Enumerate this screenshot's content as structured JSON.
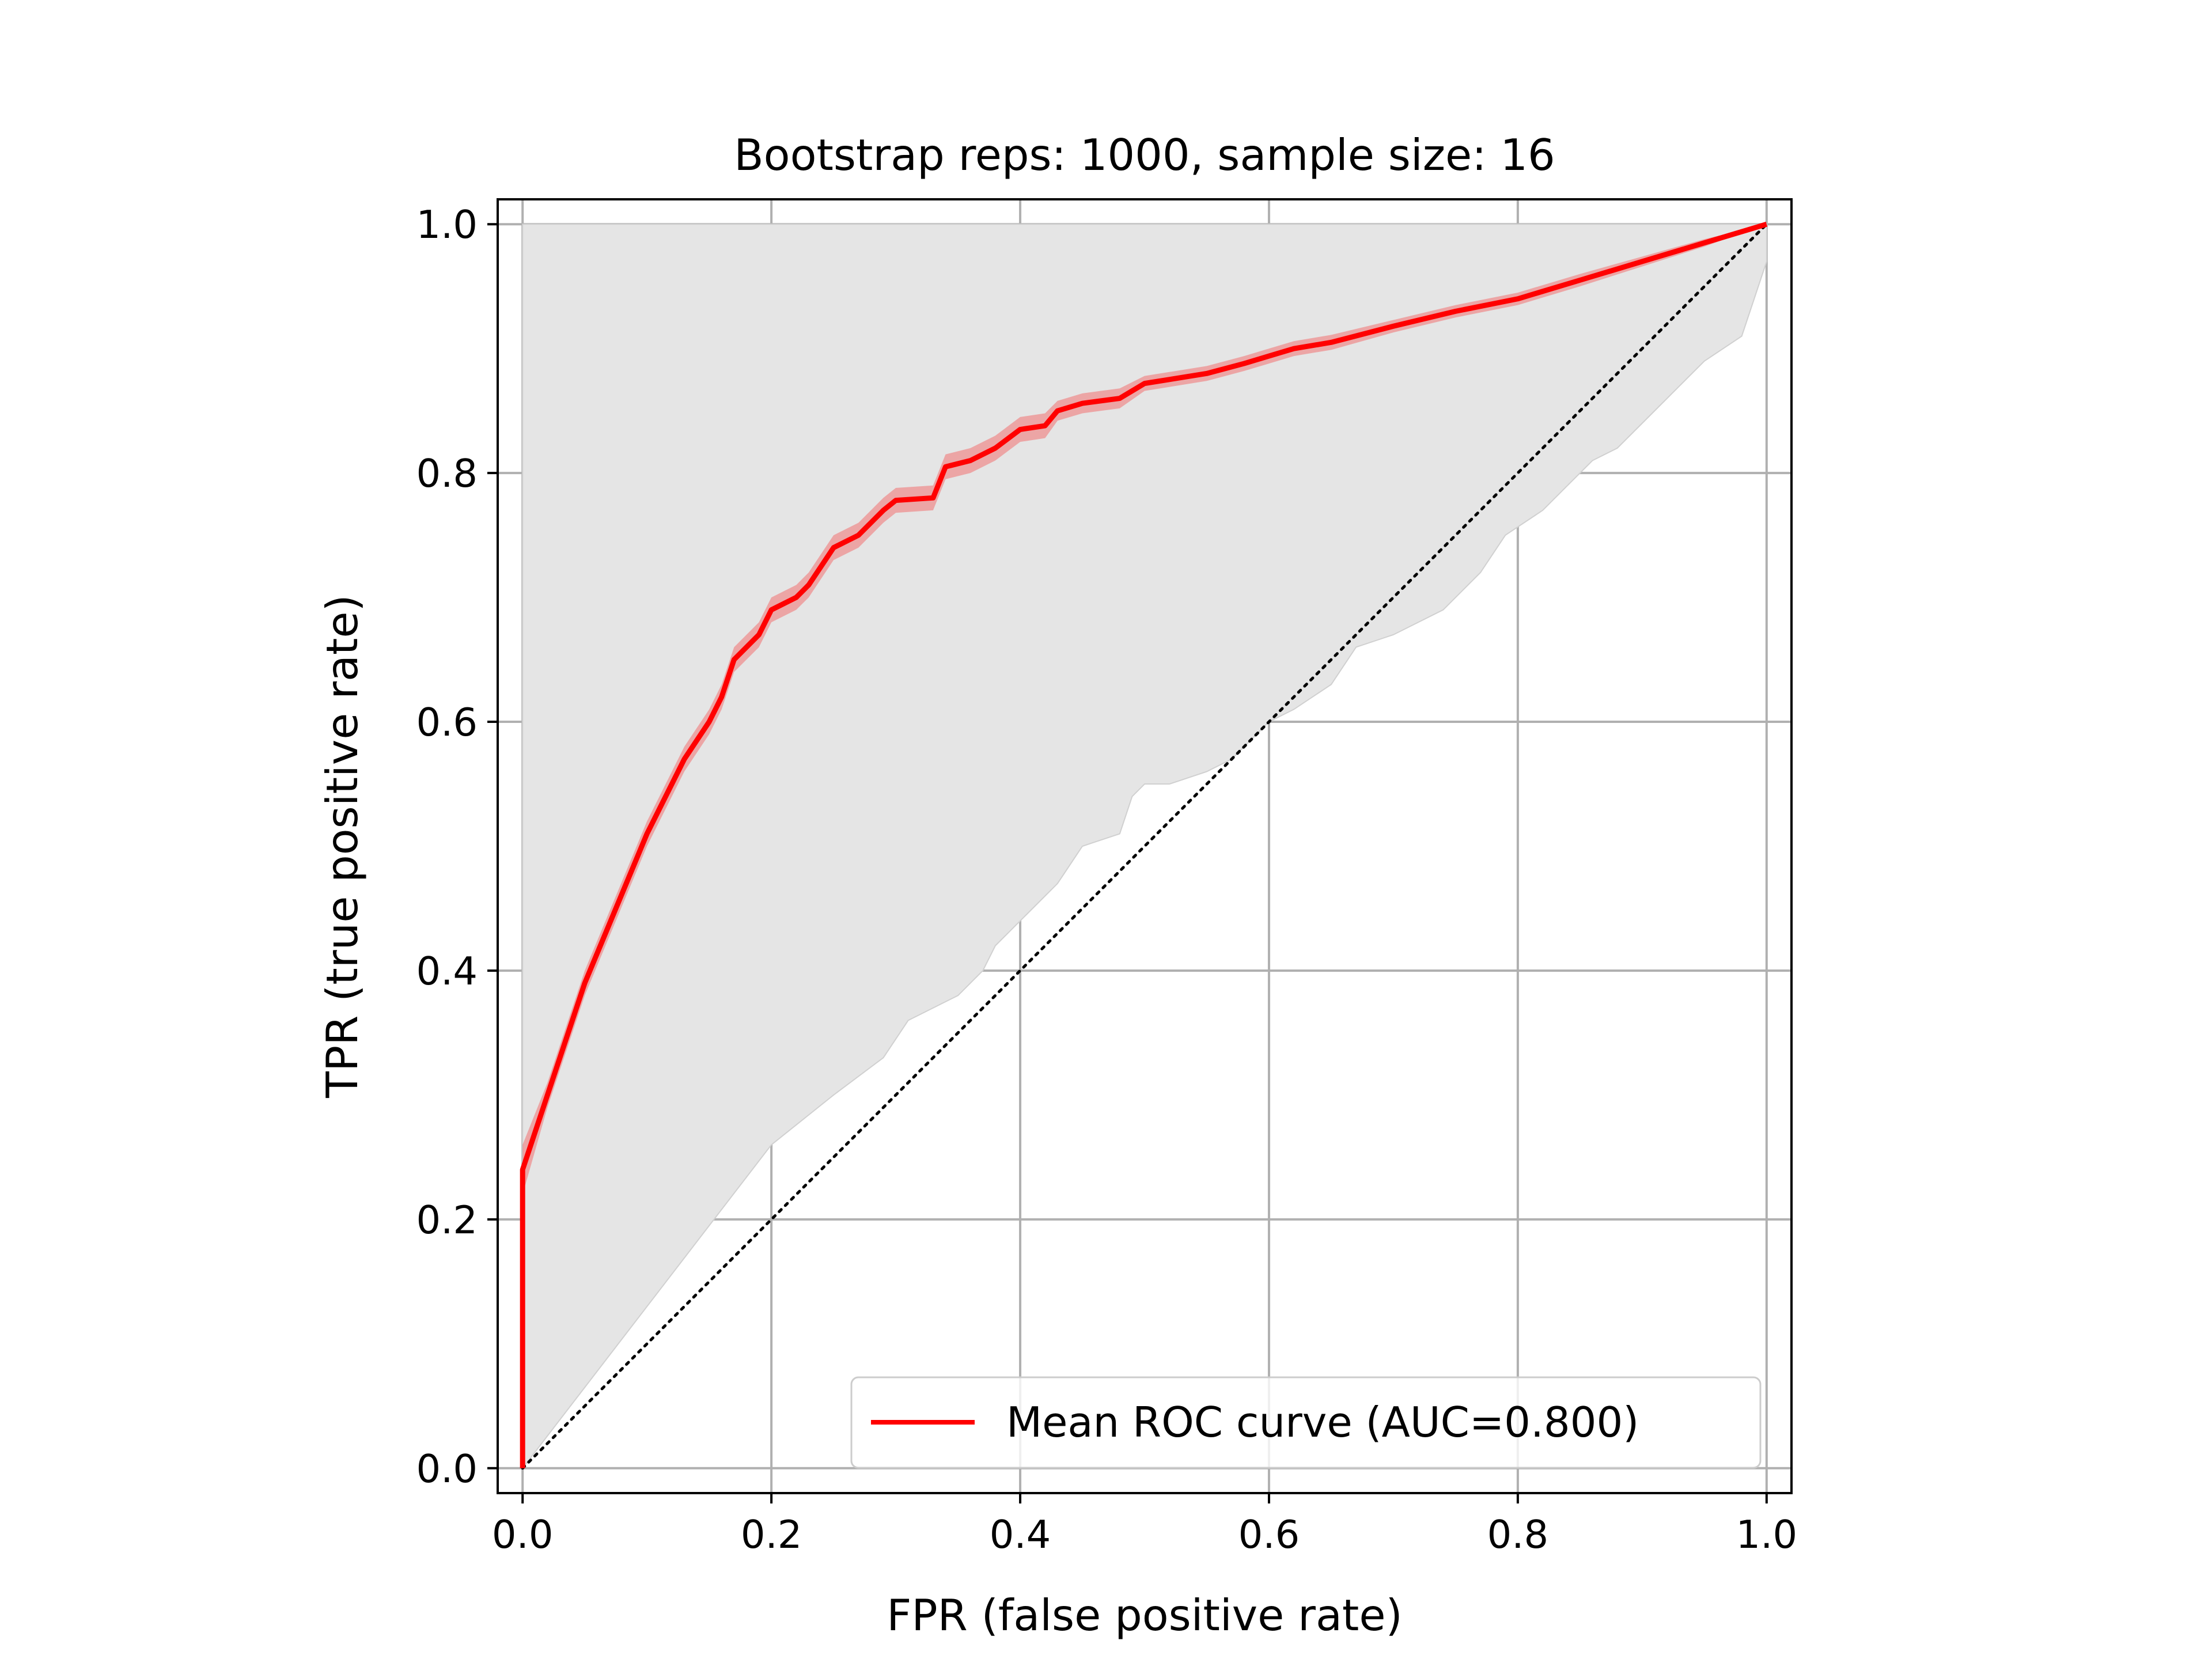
{
  "chart_data": {
    "type": "line",
    "title": "Bootstrap reps: 1000, sample size: 16",
    "xlabel": "FPR (false positive rate)",
    "ylabel": "TPR (true positive rate)",
    "xlim": [
      -0.02,
      1.02
    ],
    "ylim": [
      -0.02,
      1.02
    ],
    "xticks": [
      0.0,
      0.2,
      0.4,
      0.6,
      0.8,
      1.0
    ],
    "yticks": [
      0.0,
      0.2,
      0.4,
      0.6,
      0.8,
      1.0
    ],
    "xtick_labels": [
      "0.0",
      "0.2",
      "0.4",
      "0.6",
      "0.8",
      "1.0"
    ],
    "ytick_labels": [
      "0.0",
      "0.2",
      "0.4",
      "0.6",
      "0.8",
      "1.0"
    ],
    "grid": true,
    "legend_position": "lower-right",
    "series": [
      {
        "name": "Mean ROC curve (AUC=0.800)",
        "color": "#ff0000",
        "x": [
          0.0,
          0.0,
          0.02,
          0.05,
          0.1,
          0.13,
          0.15,
          0.16,
          0.17,
          0.19,
          0.2,
          0.22,
          0.23,
          0.25,
          0.27,
          0.29,
          0.3,
          0.33,
          0.34,
          0.36,
          0.38,
          0.4,
          0.42,
          0.43,
          0.45,
          0.48,
          0.5,
          0.55,
          0.58,
          0.6,
          0.62,
          0.65,
          0.7,
          0.75,
          0.8,
          0.85,
          0.9,
          0.95,
          1.0
        ],
        "y": [
          0.0,
          0.24,
          0.3,
          0.39,
          0.51,
          0.57,
          0.6,
          0.62,
          0.65,
          0.67,
          0.69,
          0.7,
          0.71,
          0.74,
          0.75,
          0.77,
          0.778,
          0.78,
          0.805,
          0.81,
          0.82,
          0.835,
          0.838,
          0.85,
          0.856,
          0.86,
          0.872,
          0.88,
          0.888,
          0.894,
          0.9,
          0.905,
          0.918,
          0.93,
          0.94,
          0.955,
          0.97,
          0.985,
          1.0
        ]
      }
    ],
    "band_color": "#ff0000",
    "band_upper": [
      0.0,
      0.26,
      0.31,
      0.4,
      0.52,
      0.58,
      0.61,
      0.63,
      0.66,
      0.68,
      0.7,
      0.71,
      0.72,
      0.75,
      0.76,
      0.78,
      0.788,
      0.79,
      0.815,
      0.82,
      0.83,
      0.845,
      0.848,
      0.858,
      0.864,
      0.868,
      0.878,
      0.886,
      0.894,
      0.9,
      0.906,
      0.911,
      0.923,
      0.935,
      0.945,
      0.96,
      0.974,
      0.988,
      1.0
    ],
    "band_lower": [
      0.0,
      0.22,
      0.29,
      0.38,
      0.5,
      0.56,
      0.59,
      0.61,
      0.64,
      0.66,
      0.68,
      0.69,
      0.7,
      0.73,
      0.74,
      0.76,
      0.768,
      0.77,
      0.795,
      0.8,
      0.81,
      0.825,
      0.828,
      0.842,
      0.848,
      0.852,
      0.866,
      0.874,
      0.882,
      0.888,
      0.894,
      0.899,
      0.913,
      0.925,
      0.935,
      0.95,
      0.966,
      0.982,
      1.0
    ],
    "ci_band": {
      "color": "#e5e5e5",
      "upper_x": [
        0.0,
        0.0,
        0.2,
        0.4,
        0.6,
        0.8,
        1.0
      ],
      "upper_y": [
        0.0,
        1.0,
        1.0,
        1.0,
        1.0,
        1.0,
        1.0
      ],
      "lower_x": [
        0.0,
        0.1,
        0.2,
        0.25,
        0.29,
        0.31,
        0.33,
        0.35,
        0.37,
        0.38,
        0.39,
        0.4,
        0.41,
        0.43,
        0.45,
        0.48,
        0.49,
        0.5,
        0.52,
        0.55,
        0.57,
        0.6,
        0.62,
        0.65,
        0.67,
        0.7,
        0.74,
        0.77,
        0.79,
        0.82,
        0.84,
        0.86,
        0.88,
        0.9,
        0.93,
        0.95,
        0.98,
        1.0
      ],
      "lower_y": [
        0.0,
        0.13,
        0.26,
        0.3,
        0.33,
        0.36,
        0.37,
        0.38,
        0.4,
        0.42,
        0.43,
        0.44,
        0.45,
        0.47,
        0.5,
        0.51,
        0.54,
        0.55,
        0.55,
        0.56,
        0.57,
        0.6,
        0.61,
        0.63,
        0.66,
        0.67,
        0.69,
        0.72,
        0.75,
        0.77,
        0.79,
        0.81,
        0.82,
        0.84,
        0.87,
        0.89,
        0.91,
        0.97
      ]
    },
    "diagonal": {
      "x": [
        0.0,
        1.0
      ],
      "y": [
        0.0,
        1.0
      ],
      "color": "#000000",
      "style": "dotted"
    }
  }
}
